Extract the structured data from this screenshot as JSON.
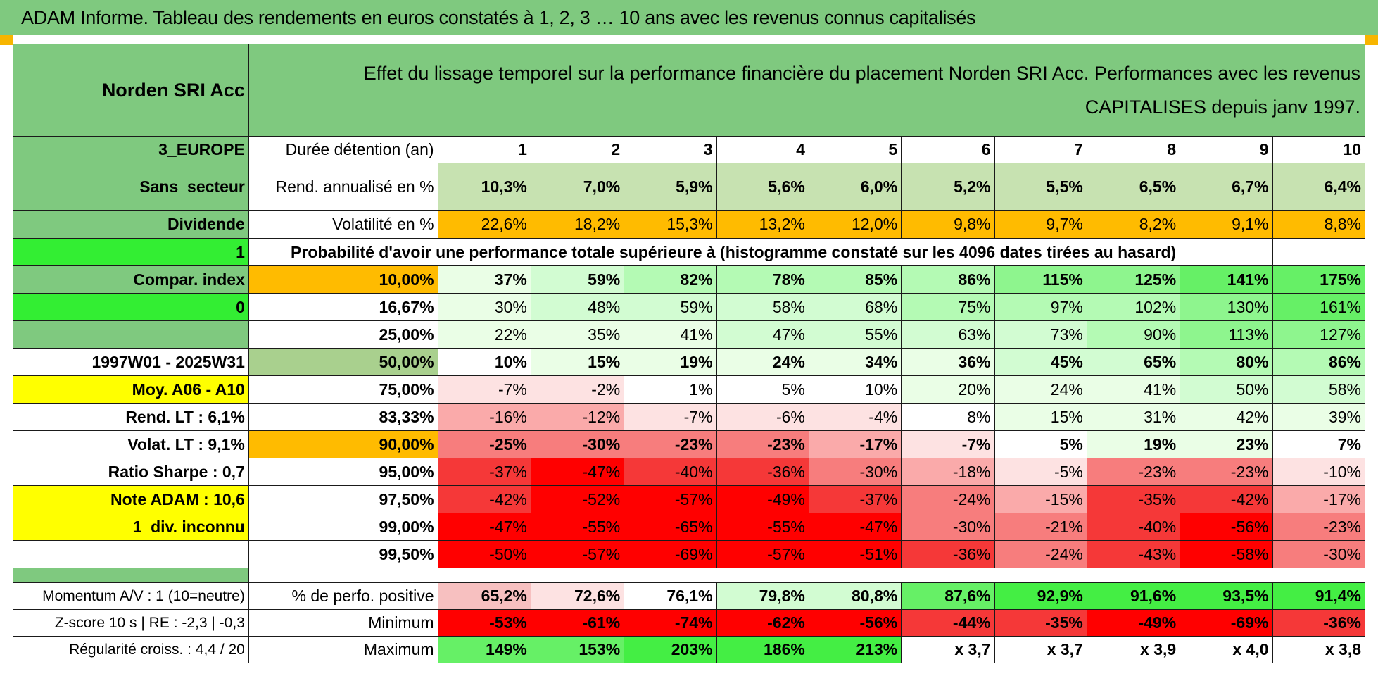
{
  "title": "ADAM Informe. Tableau des rendements en euros constatés à 1, 2, 3 … 10 ans avec les revenus connus capitalisés",
  "fund_name": "Norden SRI Acc",
  "effect_text": "Effet du lissage temporel sur la performance financière du placement Norden SRI Acc. Performances avec les revenus CAPITALISES depuis janv 1997.",
  "left": {
    "zone": "3_EUROPE",
    "sector": "Sans_secteur",
    "distribution": "Dividende",
    "flag1": "1",
    "compar_label": "Compar. index",
    "flag2": "0",
    "period": "1997W01 - 2025W31",
    "moy": "Moy. A06 - A10",
    "rend_lt": "Rend. LT :    6,1%",
    "volat_lt": "Volat. LT :    9,1%",
    "sharpe": "Ratio Sharpe :     0,7",
    "note": "Note ADAM : 10,6",
    "div": "1_div. inconnu",
    "momentum": "Momentum A/V : 1 (10=neutre)",
    "zscore": "Z-score 10 s | RE : -2,3 | -0,3",
    "regularite": "Régularité croiss. : 4,4 / 20"
  },
  "labels": {
    "duree": "Durée détention (an)",
    "rend": "Rend. annualisé en %",
    "vol": "Volatilité en %",
    "proba": "Probabilité d'avoir une performance totale supérieure à (histogramme constaté sur les 4096 dates tirées au hasard)",
    "positive": "% de perfo. positive",
    "minimum": "Minimum",
    "maximum": "Maximum"
  },
  "years": [
    "1",
    "2",
    "3",
    "4",
    "5",
    "6",
    "7",
    "8",
    "9",
    "10"
  ],
  "rendement": [
    "10,3%",
    "7,0%",
    "5,9%",
    "5,6%",
    "6,0%",
    "5,2%",
    "5,5%",
    "6,5%",
    "6,7%",
    "6,4%"
  ],
  "volatilite": [
    "22,6%",
    "18,2%",
    "15,3%",
    "13,2%",
    "12,0%",
    "9,8%",
    "9,7%",
    "8,2%",
    "9,1%",
    "8,8%"
  ],
  "quantiles": [
    {
      "p": "10,00%",
      "v": [
        "37%",
        "59%",
        "82%",
        "78%",
        "85%",
        "86%",
        "115%",
        "125%",
        "141%",
        "175%"
      ]
    },
    {
      "p": "16,67%",
      "v": [
        "30%",
        "48%",
        "59%",
        "58%",
        "68%",
        "75%",
        "97%",
        "102%",
        "130%",
        "161%"
      ]
    },
    {
      "p": "25,00%",
      "v": [
        "22%",
        "35%",
        "41%",
        "47%",
        "55%",
        "63%",
        "73%",
        "90%",
        "113%",
        "127%"
      ]
    },
    {
      "p": "50,00%",
      "v": [
        "10%",
        "15%",
        "19%",
        "24%",
        "34%",
        "36%",
        "45%",
        "65%",
        "80%",
        "86%"
      ]
    },
    {
      "p": "75,00%",
      "v": [
        "-7%",
        "-2%",
        "1%",
        "5%",
        "10%",
        "20%",
        "24%",
        "41%",
        "50%",
        "58%"
      ]
    },
    {
      "p": "83,33%",
      "v": [
        "-16%",
        "-12%",
        "-7%",
        "-6%",
        "-4%",
        "8%",
        "15%",
        "31%",
        "42%",
        "39%"
      ]
    },
    {
      "p": "90,00%",
      "v": [
        "-25%",
        "-30%",
        "-23%",
        "-23%",
        "-17%",
        "-7%",
        "5%",
        "19%",
        "23%",
        "7%"
      ]
    },
    {
      "p": "95,00%",
      "v": [
        "-37%",
        "-47%",
        "-40%",
        "-36%",
        "-30%",
        "-18%",
        "-5%",
        "-23%",
        "-23%",
        "-10%"
      ]
    },
    {
      "p": "97,50%",
      "v": [
        "-42%",
        "-52%",
        "-57%",
        "-49%",
        "-37%",
        "-24%",
        "-15%",
        "-35%",
        "-42%",
        "-17%"
      ]
    },
    {
      "p": "99,00%",
      "v": [
        "-47%",
        "-55%",
        "-65%",
        "-55%",
        "-47%",
        "-30%",
        "-21%",
        "-40%",
        "-56%",
        "-23%"
      ]
    },
    {
      "p": "99,50%",
      "v": [
        "-50%",
        "-57%",
        "-69%",
        "-57%",
        "-51%",
        "-36%",
        "-24%",
        "-43%",
        "-58%",
        "-30%"
      ]
    }
  ],
  "positive": [
    "65,2%",
    "72,6%",
    "76,1%",
    "79,8%",
    "80,8%",
    "87,6%",
    "92,9%",
    "91,6%",
    "93,5%",
    "91,4%"
  ],
  "minimum": [
    "-53%",
    "-61%",
    "-74%",
    "-62%",
    "-56%",
    "-44%",
    "-35%",
    "-49%",
    "-69%",
    "-36%"
  ],
  "maximum": [
    "149%",
    "153%",
    "203%",
    "186%",
    "213%",
    "x 3,7",
    "x 3,7",
    "x 3,9",
    "x 4,0",
    "x 3,8"
  ],
  "colors": {
    "header_green": "#7fc97f",
    "light_green": "#c7e2b1",
    "bright_green": "#33ee33",
    "orange": "#ffbb00",
    "yellow": "#ffff00",
    "red_text": "#d8000f"
  }
}
